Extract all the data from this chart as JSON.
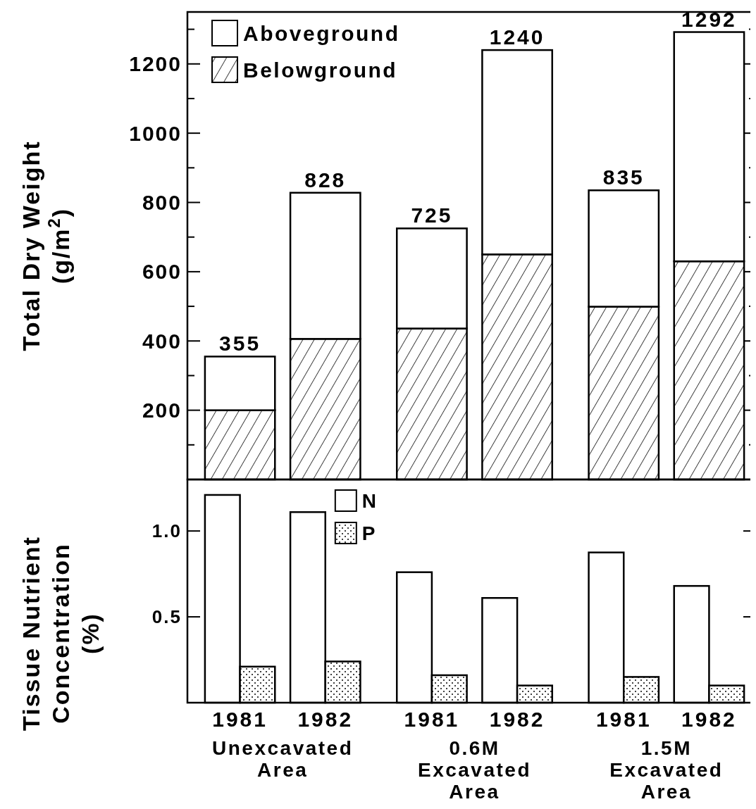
{
  "chart_data": [
    {
      "type": "bar",
      "ylabel": "Total Dry Weight\n(g/m$^{2}$)",
      "categories": [
        "1981",
        "1982",
        "1981",
        "1982",
        "1981",
        "1982"
      ],
      "stacked": true,
      "series": [
        {
          "name": "Belowground",
          "color": "#000000",
          "values": [
            200,
            406,
            436,
            650,
            499,
            630
          ]
        },
        {
          "name": "Aboveground",
          "color": "#ffffff",
          "values": [
            155,
            422,
            289,
            590,
            336,
            662
          ]
        }
      ],
      "totals": [
        "355",
        "828",
        "725",
        "1240",
        "835",
        "1292"
      ],
      "ylim": [
        0,
        1350
      ],
      "yticks": [
        {
          "value": 100,
          "label": null
        },
        200,
        {
          "value": 300,
          "label": null
        },
        400,
        {
          "value": 500,
          "label": null
        },
        600,
        {
          "value": 700,
          "label": null
        },
        800,
        {
          "value": 900,
          "label": null
        },
        1000,
        {
          "value": 1100,
          "label": null
        },
        1200,
        {
          "value": 1300,
          "label": null
        }
      ],
      "tick_labels": "y",
      "legend": "top left",
      "grid": false
    },
    {
      "type": "bar",
      "ylabel": "Tissue Nutrient\nConcentration\n(%)",
      "categories": [
        "1981",
        "1982",
        "1981",
        "1982",
        "1981",
        "1982"
      ],
      "series": [
        {
          "name": "N",
          "color": "#ffffff",
          "values": [
            1.21,
            1.11,
            0.76,
            0.61,
            0.875,
            0.68
          ]
        },
        {
          "name": "P",
          "color": "#000000",
          "values": [
            0.21,
            0.24,
            0.16,
            0.1,
            0.15,
            0.1
          ]
        }
      ],
      "ylim": [
        0,
        1.3
      ],
      "yticks": [
        0.5,
        {
          "value": 1,
          "label": "1.0"
        }
      ],
      "annotations": [
        "Unexcavated\nArea",
        "0.6M\nExcavated\nArea",
        "1.5M\nExcavated\nArea"
      ],
      "legend": "top left",
      "grid": false
    }
  ]
}
